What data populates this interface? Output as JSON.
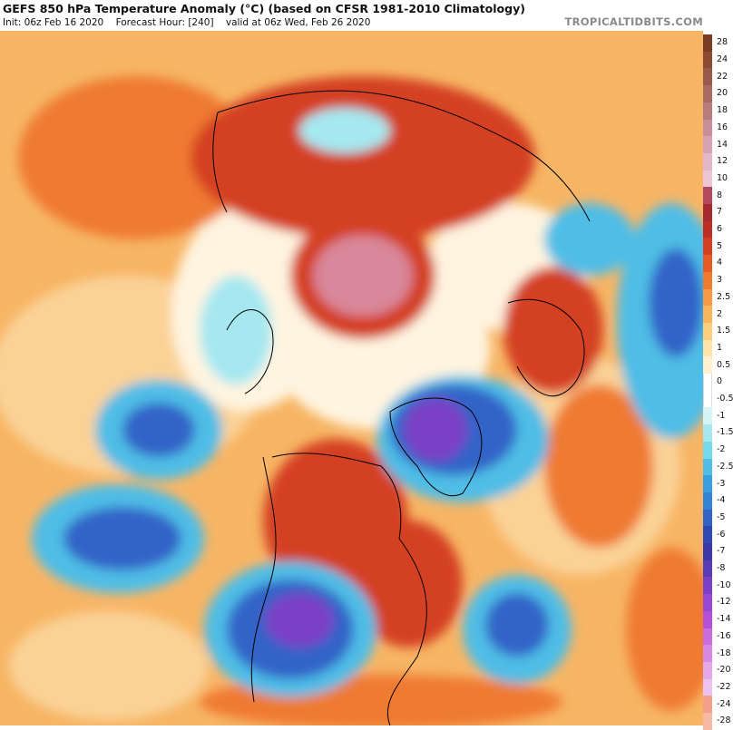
{
  "header": {
    "title": "GEFS 850 hPa Temperature Anomaly (°C) (based on CFSR 1981-2010 Climatology)",
    "init": "Init: 06z Feb 16 2020",
    "forecast_hour": "Forecast Hour: [240]",
    "valid": "valid at 06z Wed, Feb 26 2020",
    "brand": "TROPICALTIDBITS.COM"
  },
  "colorbar": {
    "levels": [
      {
        "label": "28",
        "color": "#7a3d24"
      },
      {
        "label": "24",
        "color": "#8c4a33"
      },
      {
        "label": "22",
        "color": "#9a5a49"
      },
      {
        "label": "20",
        "color": "#a96a62"
      },
      {
        "label": "18",
        "color": "#b87c7d"
      },
      {
        "label": "16",
        "color": "#c88f98"
      },
      {
        "label": "14",
        "color": "#d6a2b4"
      },
      {
        "label": "12",
        "color": "#e3b6c9"
      },
      {
        "label": "10",
        "color": "#edc6d6"
      },
      {
        "label": "8",
        "color": "#b14a5e"
      },
      {
        "label": "7",
        "color": "#a52a2e"
      },
      {
        "label": "6",
        "color": "#bd2e26"
      },
      {
        "label": "5",
        "color": "#d43f22"
      },
      {
        "label": "4",
        "color": "#e55a25"
      },
      {
        "label": "3",
        "color": "#ef7a30"
      },
      {
        "label": "2.5",
        "color": "#f59a45"
      },
      {
        "label": "2",
        "color": "#f8b65c"
      },
      {
        "label": "1.5",
        "color": "#fbcf7c"
      },
      {
        "label": "1",
        "color": "#fde3a6"
      },
      {
        "label": "0.5",
        "color": "#fff1cf"
      },
      {
        "label": "0",
        "color": "#ffffff"
      },
      {
        "label": "-0.5",
        "color": "#ffffff"
      },
      {
        "label": "-1",
        "color": "#d6f5f7"
      },
      {
        "label": "-1.5",
        "color": "#a6e8f0"
      },
      {
        "label": "-2",
        "color": "#77d8ec"
      },
      {
        "label": "-2.5",
        "color": "#4fbde6"
      },
      {
        "label": "-3",
        "color": "#3a9fe0"
      },
      {
        "label": "-4",
        "color": "#3383d6"
      },
      {
        "label": "-5",
        "color": "#3264c7"
      },
      {
        "label": "-6",
        "color": "#3048b4"
      },
      {
        "label": "-7",
        "color": "#3c37a8"
      },
      {
        "label": "-8",
        "color": "#5b3ab6"
      },
      {
        "label": "-10",
        "color": "#7b40c6"
      },
      {
        "label": "-12",
        "color": "#9946d2"
      },
      {
        "label": "-14",
        "color": "#b550d8"
      },
      {
        "label": "-16",
        "color": "#c96cdd"
      },
      {
        "label": "-18",
        "color": "#d78ae2"
      },
      {
        "label": "-20",
        "color": "#e2a8e8"
      },
      {
        "label": "-22",
        "color": "#ecc3ef"
      },
      {
        "label": "-24",
        "color": "#f2a08a"
      },
      {
        "label": "-28",
        "color": "#f6b9a4"
      }
    ]
  },
  "map_colors": {
    "background_warm": "#f7b565",
    "warm_light": "#fbd296",
    "warm_medium": "#ef7a30",
    "warm_strong": "#d43f22",
    "warm_extreme": "#c46a7d",
    "warm_pink": "#d9879a",
    "neutral": "#fff4e0",
    "cold_light": "#a6e8f0",
    "cold_medium": "#4fbde6",
    "cold_strong": "#3264c7",
    "cold_extreme": "#7b40c6",
    "coast": "#000000"
  }
}
